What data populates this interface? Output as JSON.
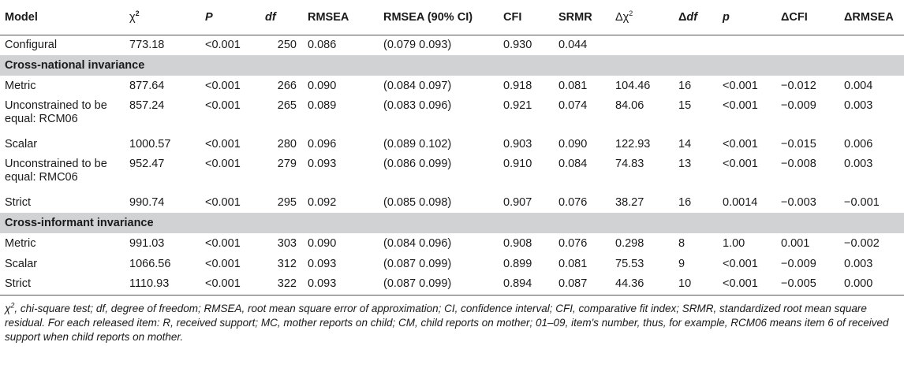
{
  "table": {
    "headers": {
      "model": "Model",
      "chi2_sym": "χ",
      "chi2_sup": "2",
      "p_upper": "P",
      "df": "df",
      "rmsea": "RMSEA",
      "rmsea_ci": "RMSEA (90% CI)",
      "cfi": "CFI",
      "srmr": "SRMR",
      "dchi2_sym": "Δχ",
      "dchi2_sup": "2",
      "ddf_delta": "Δ",
      "ddf_df": "df",
      "p_lower": "p",
      "dcfi": "ΔCFI",
      "drmsea": "ΔRMSEA"
    },
    "configural": {
      "model": "Configural",
      "chi2": "773.18",
      "p": "<0.001",
      "df": "250",
      "rmsea": "0.086",
      "ci": "(0.079 0.093)",
      "cfi": "0.930",
      "srmr": "0.044",
      "dchi2": "",
      "ddf": "",
      "pp": "",
      "dcfi": "",
      "drmsea": ""
    },
    "section1": "Cross-national invariance",
    "national": [
      {
        "model": "Metric",
        "chi2": "877.64",
        "p": "<0.001",
        "df": "266",
        "rmsea": "0.090",
        "ci": "(0.084 0.097)",
        "cfi": "0.918",
        "srmr": "0.081",
        "dchi2": "104.46",
        "ddf": "16",
        "pp": "<0.001",
        "dcfi": "−0.012",
        "drmsea": "0.004"
      },
      {
        "model": "Unconstrained to be equal: RCM06",
        "chi2": "857.24",
        "p": "<0.001",
        "df": "265",
        "rmsea": "0.089",
        "ci": "(0.083 0.096)",
        "cfi": "0.921",
        "srmr": "0.074",
        "dchi2": "84.06",
        "ddf": "15",
        "pp": "<0.001",
        "dcfi": "−0.009",
        "drmsea": "0.003"
      },
      {
        "model": "Scalar",
        "chi2": "1000.57",
        "p": "<0.001",
        "df": "280",
        "rmsea": "0.096",
        "ci": "(0.089 0.102)",
        "cfi": "0.903",
        "srmr": "0.090",
        "dchi2": "122.93",
        "ddf": "14",
        "pp": "<0.001",
        "dcfi": "−0.015",
        "drmsea": "0.006"
      },
      {
        "model": "Unconstrained to be equal: RMC06",
        "chi2": "952.47",
        "p": "<0.001",
        "df": "279",
        "rmsea": "0.093",
        "ci": "(0.086 0.099)",
        "cfi": "0.910",
        "srmr": "0.084",
        "dchi2": "74.83",
        "ddf": "13",
        "pp": "<0.001",
        "dcfi": "−0.008",
        "drmsea": "0.003"
      },
      {
        "model": "Strict",
        "chi2": "990.74",
        "p": "<0.001",
        "df": "295",
        "rmsea": "0.092",
        "ci": "(0.085 0.098)",
        "cfi": "0.907",
        "srmr": "0.076",
        "dchi2": "38.27",
        "ddf": "16",
        "pp": "0.0014",
        "dcfi": "−0.003",
        "drmsea": "−0.001"
      }
    ],
    "section2": "Cross-informant invariance",
    "informant": [
      {
        "model": "Metric",
        "chi2": "991.03",
        "p": "<0.001",
        "df": "303",
        "rmsea": "0.090",
        "ci": "(0.084 0.096)",
        "cfi": "0.908",
        "srmr": "0.076",
        "dchi2": "0.298",
        "ddf": "8",
        "pp": "1.00",
        "dcfi": "0.001",
        "drmsea": "−0.002"
      },
      {
        "model": "Scalar",
        "chi2": "1066.56",
        "p": "<0.001",
        "df": "312",
        "rmsea": "0.093",
        "ci": "(0.087 0.099)",
        "cfi": "0.899",
        "srmr": "0.081",
        "dchi2": "75.53",
        "ddf": "9",
        "pp": "<0.001",
        "dcfi": "−0.009",
        "drmsea": "0.003"
      },
      {
        "model": "Strict",
        "chi2": "1110.93",
        "p": "<0.001",
        "df": "322",
        "rmsea": "0.093",
        "ci": "(0.087 0.099)",
        "cfi": "0.894",
        "srmr": "0.087",
        "dchi2": "44.36",
        "ddf": "10",
        "pp": "<0.001",
        "dcfi": "−0.005",
        "drmsea": "0.000"
      }
    ]
  },
  "footnote": {
    "chi": "χ",
    "sup": "2",
    "text": ", chi-square test; df, degree of freedom; RMSEA, root mean square error of approximation; CI, confidence interval; CFI, comparative fit index; SRMR, standardized root mean square residual. For each released item: R, received support; MC, mother reports on child; CM, child reports on mother; 01–09, item's number, thus, for example, RCM06 means item 6 of received support when child reports on mother."
  }
}
